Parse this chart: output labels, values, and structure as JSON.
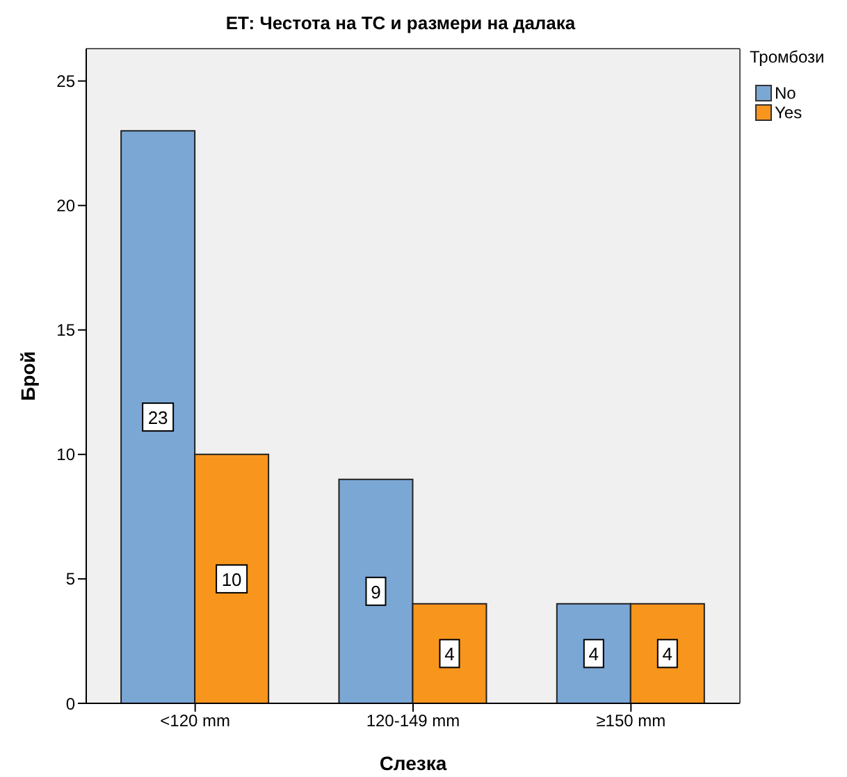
{
  "chart_data": {
    "type": "bar",
    "title": "ЕТ: Честота на ТС и размери на далака",
    "xlabel": "Слезка",
    "ylabel": "Брой",
    "legend_title": "Тромбози",
    "categories": [
      "<120 mm",
      "120-149 mm",
      "≥150 mm"
    ],
    "series": [
      {
        "name": "No",
        "color": "#7ba7d5",
        "values": [
          23,
          9,
          4
        ]
      },
      {
        "name": "Yes",
        "color": "#f7951d",
        "values": [
          10,
          4,
          4
        ]
      }
    ],
    "ylim": [
      0,
      26.3
    ],
    "yticks": [
      0,
      5,
      10,
      15,
      20,
      25
    ],
    "grid": false,
    "legend": "top right",
    "data_labels": true
  }
}
